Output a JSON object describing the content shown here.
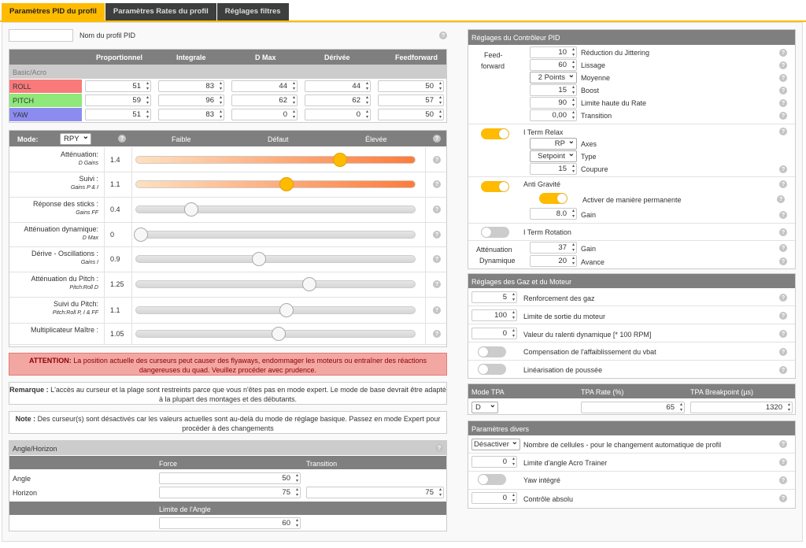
{
  "tabs": [
    "Paramètres PID du profil",
    "Paramètres Rates du profil",
    "Réglages filtres"
  ],
  "profile": {
    "name_value": "",
    "name_label": "Nom du profil PID"
  },
  "pid_table": {
    "columns": [
      "Proportionnel",
      "Integrale",
      "D Max",
      "Dérivée",
      "Feedforward"
    ],
    "section": "Basic/Acro",
    "rows": [
      {
        "axis": "ROLL",
        "color": "#f87a7a",
        "values": [
          "51",
          "83",
          "44",
          "44",
          "50"
        ]
      },
      {
        "axis": "PITCH",
        "color": "#8ee87a",
        "values": [
          "59",
          "96",
          "62",
          "62",
          "57"
        ]
      },
      {
        "axis": "YAW",
        "color": "#8c8cf0",
        "values": [
          "51",
          "83",
          "0",
          "0",
          "50"
        ]
      }
    ]
  },
  "sliders": {
    "mode_label": "Mode:",
    "mode_value": "RPY",
    "col_low": "Faible",
    "col_default": "Défaut",
    "col_high": "Élevée",
    "items": [
      {
        "label": "Atténuation:",
        "sub": "D Gains",
        "value": "1.4",
        "pos": 0.73,
        "active": true
      },
      {
        "label": "Suivi :",
        "sub": "Gains P & I",
        "value": "1.1",
        "pos": 0.54,
        "active": true
      },
      {
        "label": "Réponse des sticks :",
        "sub": "Gains FF",
        "value": "0.4",
        "pos": 0.2,
        "active": false
      },
      {
        "label": "Atténuation dynamique:",
        "sub": "D Max",
        "value": "0",
        "pos": 0.02,
        "active": false
      },
      {
        "label": "Dérive - Oscillations :",
        "sub": "Gains I",
        "value": "0.9",
        "pos": 0.44,
        "active": false
      },
      {
        "label": "Atténuation du Pitch :",
        "sub": "Pitch:Roll D",
        "value": "1.25",
        "pos": 0.62,
        "active": false
      },
      {
        "label": "Suivi du Pitch:",
        "sub": "Pitch:Roll P, I & FF",
        "value": "1.1",
        "pos": 0.54,
        "active": false
      },
      {
        "label": "Multiplicateur Maître :",
        "sub": "",
        "value": "1.05",
        "pos": 0.51,
        "active": false
      }
    ]
  },
  "warning": {
    "strong": "ATTENTION:",
    "text": "La position actuelle des curseurs peut causer des flyaways, endommager les moteurs ou entraîner des réactions dangereuses du quad. Veuillez procéder avec prudence."
  },
  "remark": {
    "strong": "Remarque :",
    "text": "L'accès au curseur et la plage sont restreints parce que vous n'êtes pas en mode expert. Le mode de base devrait être adapté à la plupart des montages et des débutants."
  },
  "note": {
    "strong": "Note :",
    "text": "Des curseur(s) sont désactivés car les valeurs actuelles sont au-delà du mode de réglage basique. Passez en mode Expert pour procéder à des changements"
  },
  "angle": {
    "title": "Angle/Horizon",
    "col_force": "Force",
    "col_transition": "Transition",
    "angle_label": "Angle",
    "angle_force": "50",
    "horizon_label": "Horizon",
    "horizon_force": "75",
    "horizon_transition": "75",
    "limit_label": "Limite de l'Angle",
    "limit_value": "60"
  },
  "controller": {
    "title": "Réglages du Contrôleur PID",
    "ff_label1": "Feed-",
    "ff_label2": "forward",
    "ff": [
      {
        "value": "10",
        "label": "Réduction du Jittering"
      },
      {
        "value": "60",
        "label": "Lissage"
      },
      {
        "value": "2 Points",
        "label": "Moyenne",
        "select": true
      },
      {
        "value": "15",
        "label": "Boost"
      },
      {
        "value": "90",
        "label": "Limite haute du Rate"
      },
      {
        "value": "0,00",
        "label": "Transition"
      }
    ],
    "iterm_relax": "I Term Relax",
    "axes_value": "RP",
    "axes_label": "Axes",
    "type_value": "Setpoint",
    "type_label": "Type",
    "cutoff_value": "15",
    "cutoff_label": "Coupure",
    "anti_gravity": "Anti Gravité",
    "ag_perm": "Activer de manière permanente",
    "ag_gain_value": "8.0",
    "ag_gain_label": "Gain",
    "iterm_rotation": "I Term Rotation",
    "dyn_label1": "Atténuation",
    "dyn_label2": "Dynamique",
    "dyn_gain_value": "37",
    "dyn_gain_label": "Gain",
    "dyn_adv_value": "20",
    "dyn_adv_label": "Avance"
  },
  "throttle": {
    "title": "Réglages des Gaz et du Moteur",
    "items": [
      {
        "value": "5",
        "label": "Renforcement des gaz"
      },
      {
        "value": "100",
        "label": "Limite de sortie du moteur"
      },
      {
        "value": "0",
        "label": "Valeur du ralenti dynamique [* 100 RPM]"
      }
    ],
    "vbat": "Compensation de l'affaiblissement du vbat",
    "thrust": "Linéarisation de poussée"
  },
  "tpa": {
    "col_mode": "Mode TPA",
    "col_rate": "TPA Rate (%)",
    "col_bp": "TPA Breakpoint (µs)",
    "mode": "D",
    "rate": "65",
    "bp": "1320"
  },
  "misc": {
    "title": "Paramètres divers",
    "cells_value": "Désactiver",
    "cells_label": "Nombre de cellules - pour le changement automatique de profil",
    "acro_value": "0",
    "acro_label": "Limite d'angle Acro Trainer",
    "yaw": "Yaw intégré",
    "abs_value": "0",
    "abs_label": "Contrôle absolu"
  },
  "help": "?"
}
